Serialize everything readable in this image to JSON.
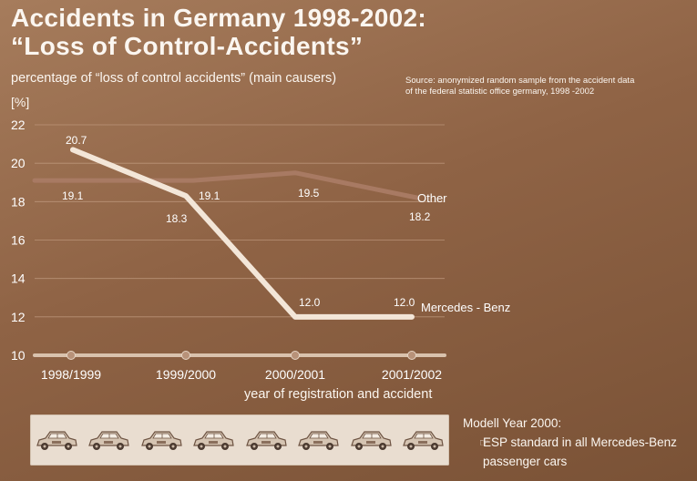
{
  "title_line1": "Accidents in Germany 1998-2002:",
  "title_line2": "“Loss of Control-Accidents”",
  "subtitle": "percentage of “loss of control accidents” (main causers)",
  "source_line1": "Source: anonymized random sample from the accident data",
  "source_line2": "of the federal statistic office germany, 1998 -2002",
  "unit_label": "[%]",
  "note": {
    "heading": "Modell Year 2000:",
    "line1": "ESP standard in all Mercedes-Benz",
    "line2": "passenger cars",
    "bullet_icon": "pointing-hand-icon"
  },
  "colors": {
    "background": "#8f6345",
    "mercedes_line": "#f3e6d8",
    "other_line": "#a87a63",
    "grid": "#c39e83",
    "strip": "#e9ddd0"
  },
  "chart_data": {
    "type": "line",
    "categories": [
      "1998/1999",
      "1999/2000",
      "2000/2001",
      "2001/2002"
    ],
    "xlabel": "year of registration and accident",
    "ylabel": "[%]",
    "ylim": [
      10,
      22
    ],
    "yticks": [
      10,
      12,
      14,
      16,
      18,
      20,
      22
    ],
    "grid": true,
    "series": [
      {
        "name": "Other",
        "values": [
          19.1,
          19.1,
          19.5,
          18.2
        ],
        "labels": [
          "19.1",
          "19.1",
          "19.5",
          "18.2"
        ]
      },
      {
        "name": "Mercedes - Benz",
        "values": [
          20.7,
          18.3,
          12.0,
          12.0
        ],
        "labels": [
          "20.7",
          "18.3",
          "12.0",
          "12.0"
        ]
      }
    ]
  }
}
